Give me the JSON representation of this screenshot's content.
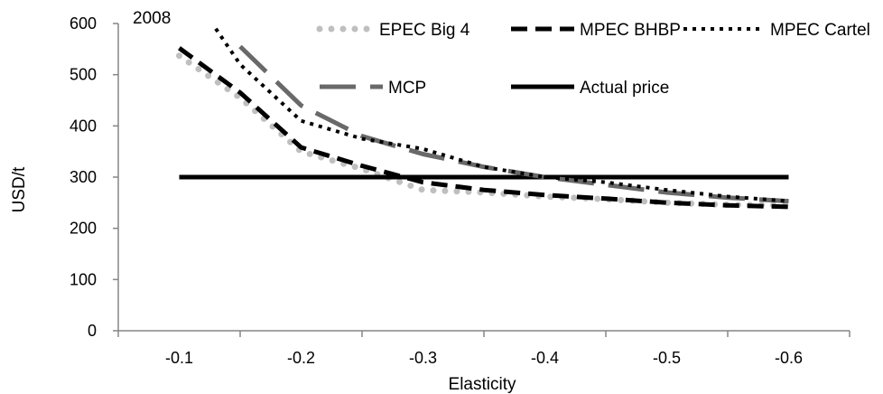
{
  "chart_data": {
    "type": "line",
    "annotation": "2008",
    "xlabel": "Elasticity",
    "ylabel": "USD/t",
    "x_tick_labels": [
      "-0.1",
      "-0.2",
      "-0.3",
      "-0.4",
      "-0.5",
      "-0.6"
    ],
    "y_ticks": [
      0,
      100,
      200,
      300,
      400,
      500,
      600
    ],
    "ylim": [
      0,
      600
    ],
    "grid": false,
    "legend_position": "top",
    "series": [
      {
        "name": "EPEC Big 4",
        "color": "#bfbfbf",
        "style": "round-dots",
        "x": [
          -0.1,
          -0.15,
          -0.2,
          -0.25,
          -0.3,
          -0.35,
          -0.4,
          -0.45,
          -0.5,
          -0.55,
          -0.6
        ],
        "y": [
          537,
          455,
          350,
          316,
          275,
          270,
          262,
          257,
          250,
          246,
          245
        ]
      },
      {
        "name": "MPEC BHBP",
        "color": "#000000",
        "style": "dash",
        "x": [
          -0.1,
          -0.15,
          -0.2,
          -0.25,
          -0.3,
          -0.35,
          -0.4,
          -0.45,
          -0.5,
          -0.55,
          -0.6
        ],
        "y": [
          552,
          465,
          358,
          322,
          290,
          275,
          265,
          258,
          250,
          245,
          242
        ]
      },
      {
        "name": "MPEC Cartel",
        "color": "#000000",
        "style": "square-dots",
        "x": [
          -0.13,
          -0.15,
          -0.2,
          -0.25,
          -0.3,
          -0.35,
          -0.4,
          -0.45,
          -0.5,
          -0.55,
          -0.6
        ],
        "y": [
          590,
          520,
          410,
          375,
          355,
          320,
          300,
          290,
          275,
          262,
          253
        ]
      },
      {
        "name": "MCP",
        "color": "#696969",
        "style": "long-dash",
        "x": [
          -0.15,
          -0.2,
          -0.25,
          -0.3,
          -0.35,
          -0.4,
          -0.45,
          -0.5,
          -0.55,
          -0.6
        ],
        "y": [
          555,
          440,
          380,
          345,
          320,
          300,
          285,
          270,
          260,
          253
        ]
      },
      {
        "name": "Actual price",
        "color": "#000000",
        "style": "solid",
        "x": [
          -0.1,
          -0.6
        ],
        "y": [
          300,
          300
        ]
      }
    ]
  }
}
